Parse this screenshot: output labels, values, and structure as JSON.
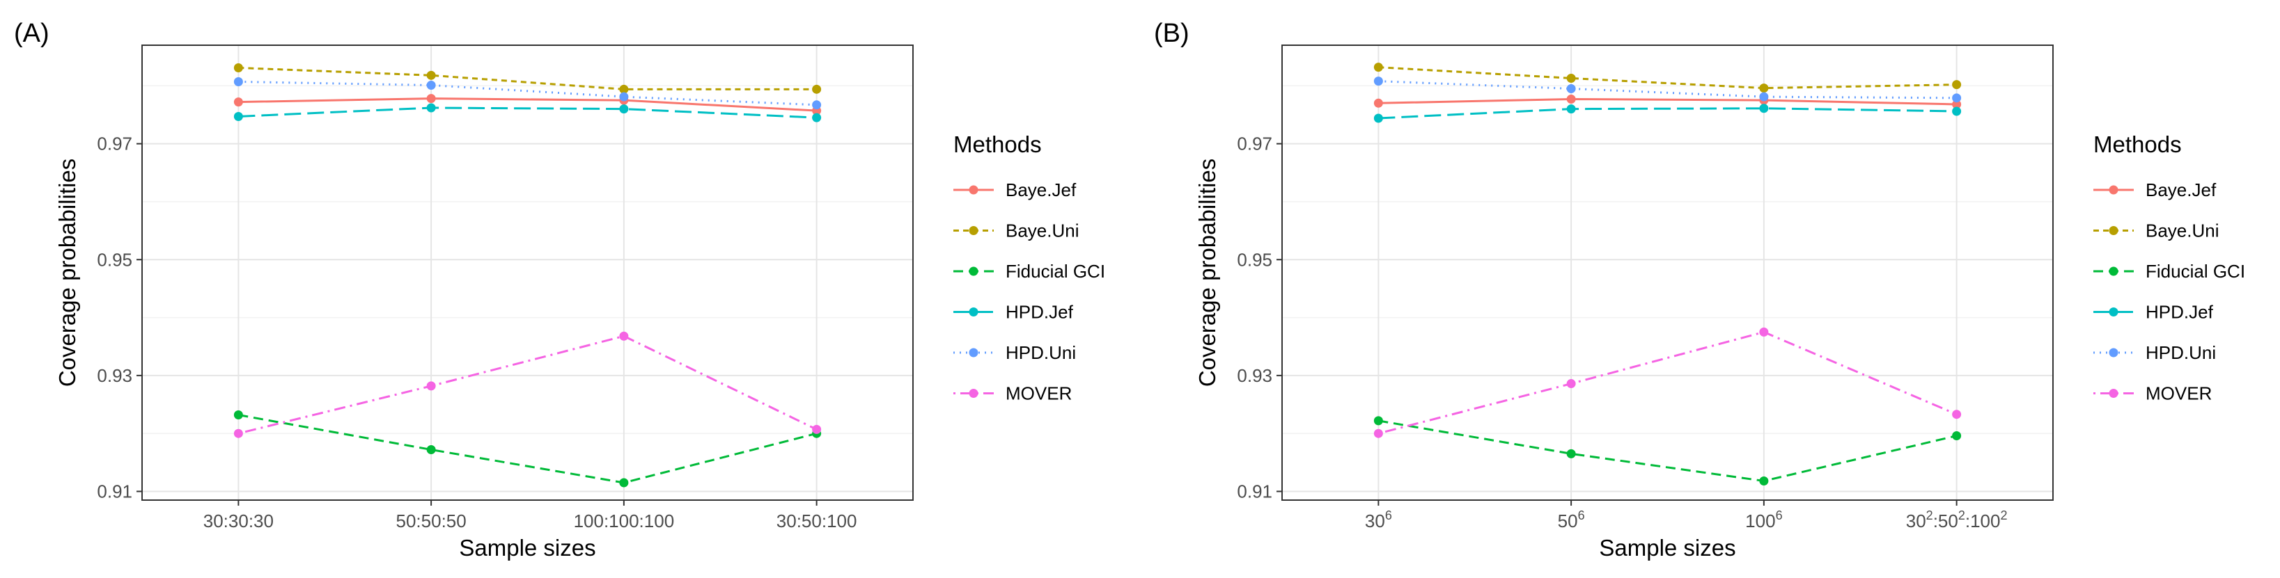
{
  "chart_data": [
    {
      "type": "line",
      "panel_label": "(A)",
      "xlabel": "Sample sizes",
      "ylabel": "Coverage probabilities",
      "categories": [
        "30:30:30",
        "50:50:50",
        "100:100:100",
        "30:50:100"
      ],
      "ylim": [
        0.9085,
        0.987
      ],
      "yticks": [
        0.91,
        0.93,
        0.95,
        0.97
      ],
      "ytick_labels": [
        "0.91",
        "0.93",
        "0.95",
        "0.97"
      ],
      "grid": true,
      "legend_title": "Methods",
      "legend_position": "right",
      "series": [
        {
          "name": "Baye.Jef",
          "color": "#F8766D",
          "dash": "solid",
          "values": [
            0.9772,
            0.9778,
            0.9775,
            0.9757
          ]
        },
        {
          "name": "Baye.Uni",
          "color": "#B79F00",
          "dash": "dashed-short",
          "values": [
            0.9831,
            0.9818,
            0.9794,
            0.9794
          ]
        },
        {
          "name": "Fiducial GCI",
          "color": "#00BA38",
          "dash": "dashed",
          "values": [
            0.9232,
            0.9172,
            0.9115,
            0.92
          ]
        },
        {
          "name": "HPD.Jef",
          "color": "#00BFC4",
          "dash": "longdash",
          "values": [
            0.9747,
            0.9762,
            0.976,
            0.9745
          ]
        },
        {
          "name": "HPD.Uni",
          "color": "#619CFF",
          "dash": "dotted",
          "values": [
            0.9807,
            0.9801,
            0.9781,
            0.9767
          ]
        },
        {
          "name": "MOVER",
          "color": "#F564E3",
          "dash": "dotdash",
          "values": [
            0.92,
            0.9282,
            0.9368,
            0.9207
          ]
        }
      ]
    },
    {
      "type": "line",
      "panel_label": "(B)",
      "xlabel": "Sample sizes",
      "ylabel": "Coverage probabilities",
      "categories": [
        {
          "base": "30",
          "sup": "6"
        },
        {
          "base": "50",
          "sup": "6"
        },
        {
          "base": "100",
          "sup": "6"
        },
        {
          "parts": [
            {
              "base": "30",
              "sup": "2"
            },
            {
              "base": ":50",
              "sup": "2"
            },
            {
              "base": ":100",
              "sup": "2"
            }
          ]
        }
      ],
      "ylim": [
        0.9085,
        0.987
      ],
      "yticks": [
        0.91,
        0.93,
        0.95,
        0.97
      ],
      "ytick_labels": [
        "0.91",
        "0.93",
        "0.95",
        "0.97"
      ],
      "grid": true,
      "legend_title": "Methods",
      "legend_position": "right",
      "series": [
        {
          "name": "Baye.Jef",
          "color": "#F8766D",
          "dash": "solid",
          "values": [
            0.977,
            0.9777,
            0.9775,
            0.9768
          ]
        },
        {
          "name": "Baye.Uni",
          "color": "#B79F00",
          "dash": "dashed-short",
          "values": [
            0.9832,
            0.9813,
            0.9796,
            0.9802
          ]
        },
        {
          "name": "Fiducial GCI",
          "color": "#00BA38",
          "dash": "dashed",
          "values": [
            0.9222,
            0.9165,
            0.9118,
            0.9196
          ]
        },
        {
          "name": "HPD.Jef",
          "color": "#00BFC4",
          "dash": "longdash",
          "values": [
            0.9744,
            0.976,
            0.9761,
            0.9756
          ]
        },
        {
          "name": "HPD.Uni",
          "color": "#619CFF",
          "dash": "dotted",
          "values": [
            0.9808,
            0.9795,
            0.9781,
            0.9779
          ]
        },
        {
          "name": "MOVER",
          "color": "#F564E3",
          "dash": "dotdash",
          "values": [
            0.92,
            0.9286,
            0.9375,
            0.9233
          ]
        }
      ]
    }
  ]
}
